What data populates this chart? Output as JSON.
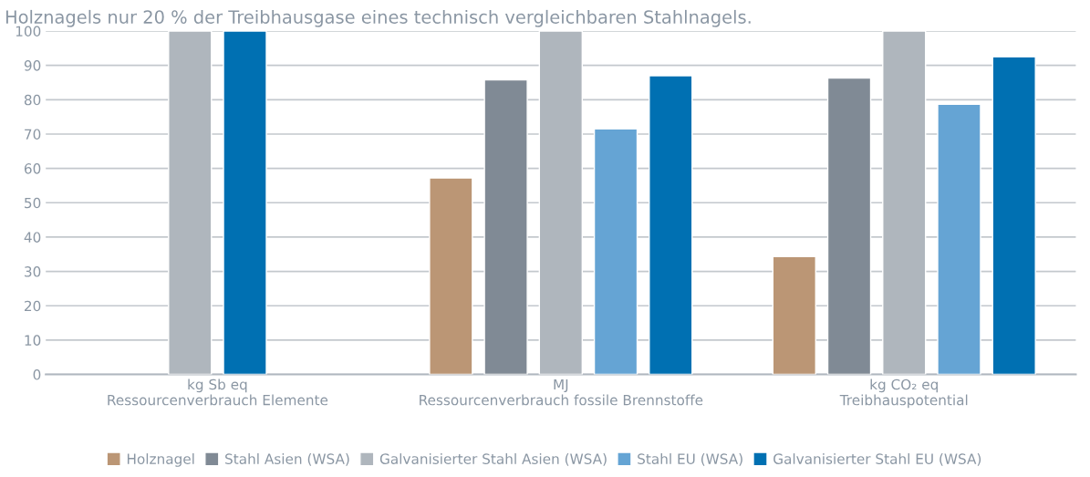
{
  "chart_data": {
    "type": "bar",
    "title": "Holznagels nur 20 % der Treibhausgase eines technisch vergleichbaren Stahlnagels.",
    "categories": [
      "kg Sb eq\nRessourcenverbrauch Elemente",
      "MJ\nRessourcenverbrauch fossile Brennstoffe",
      "kg CO₂ eq\nTreibhauspotential"
    ],
    "series": [
      {
        "name": "Holznagel",
        "color": "#bb9675",
        "values": [
          null,
          57.2,
          34.3
        ]
      },
      {
        "name": "Stahl Asien (WSA)",
        "color": "#808a95",
        "values": [
          null,
          85.8,
          86.3
        ]
      },
      {
        "name": "Galvanisierter Stahl Asien (WSA)",
        "color": "#afb6bd",
        "values": [
          100,
          100,
          100
        ]
      },
      {
        "name": "Stahl EU (WSA)",
        "color": "#65a4d4",
        "values": [
          null,
          71.5,
          78.7
        ]
      },
      {
        "name": "Galvanisierter Stahl EU (WSA)",
        "color": "#0070b2",
        "values": [
          100,
          87,
          92.5
        ]
      }
    ],
    "ylim": [
      0,
      100
    ],
    "yticks": [
      0,
      10,
      20,
      30,
      40,
      50,
      60,
      70,
      80,
      90,
      100
    ],
    "grid": "y",
    "legend": "bottom"
  }
}
